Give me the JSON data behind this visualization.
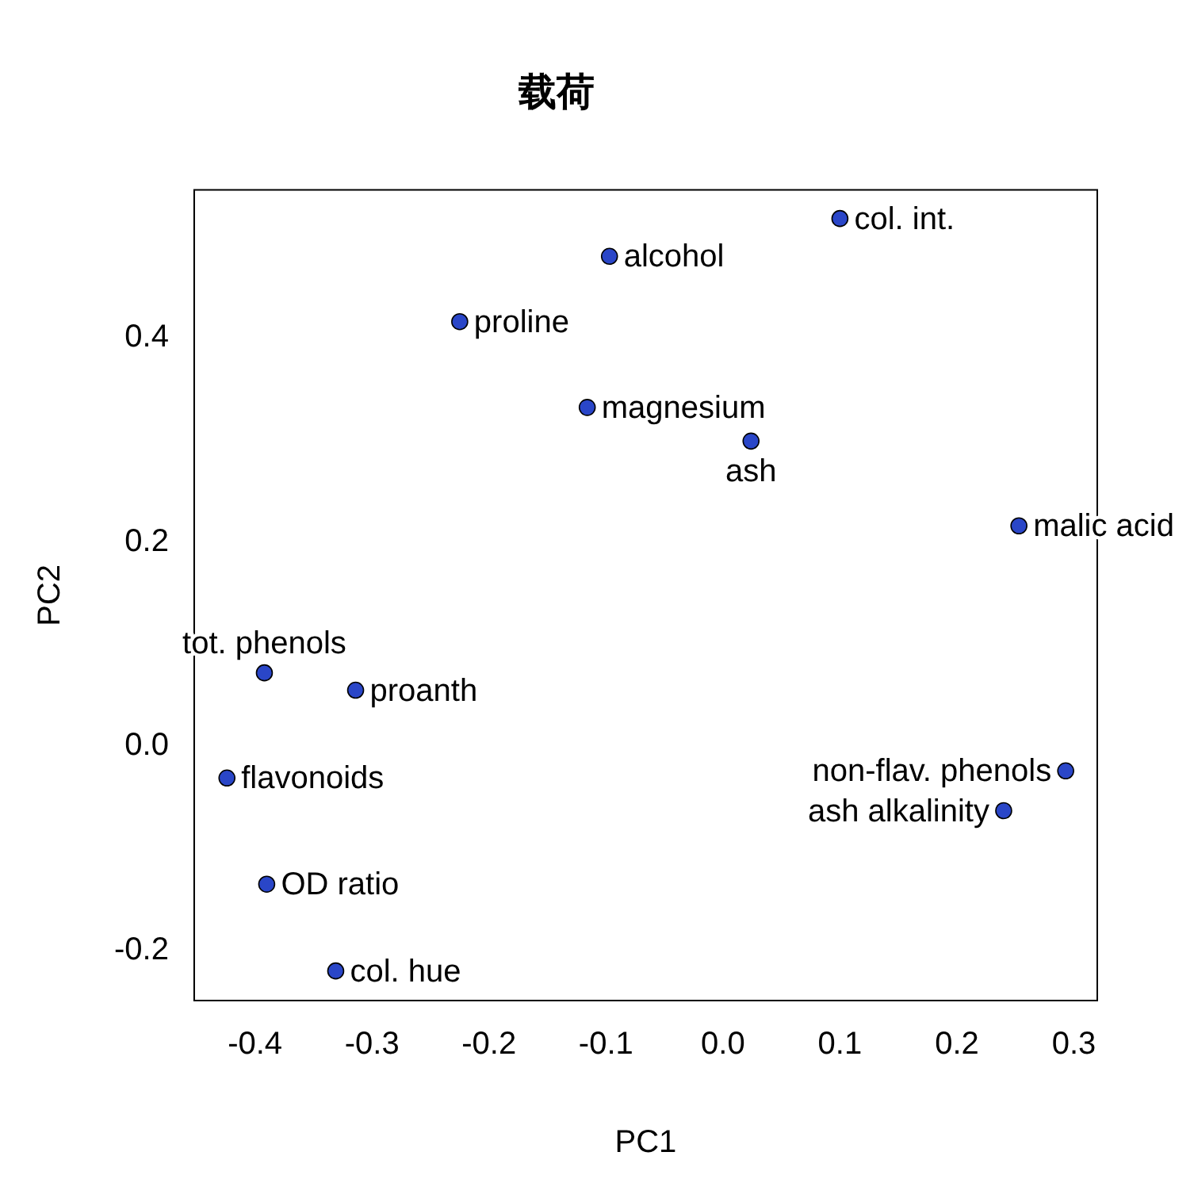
{
  "chart_data": {
    "type": "scatter",
    "title": "载荷",
    "xlabel": "PC1",
    "ylabel": "PC2",
    "x": [
      0.1,
      -0.097,
      -0.225,
      -0.116,
      0.024,
      0.253,
      -0.392,
      -0.314,
      -0.424,
      0.293,
      0.24,
      -0.39,
      -0.331
    ],
    "series": [
      {
        "color": "#2a46c8",
        "values": [
          0.517,
          0.48,
          0.416,
          0.332,
          0.299,
          0.216,
          0.072,
          0.055,
          -0.031,
          -0.024,
          -0.063,
          -0.135,
          -0.22
        ]
      }
    ],
    "marker": "circle",
    "grid": false,
    "legend": false,
    "xlim": [
      -0.452,
      0.32
    ],
    "ylim": [
      -0.249,
      0.545
    ],
    "xticks": [
      -0.4,
      -0.3,
      -0.2,
      -0.1,
      {
        "value": 0,
        "label": "0.0"
      },
      0.1,
      0.2,
      0.3
    ],
    "yticks": [
      -0.2,
      {
        "value": 0,
        "label": "0.0"
      },
      0.2,
      0.4
    ],
    "annotations": [
      {
        "text": "col. int.",
        "x": 0.1,
        "y": 0.517
      },
      {
        "text": "alcohol",
        "x": -0.097,
        "y": 0.48
      },
      {
        "text": "proline",
        "x": -0.225,
        "y": 0.416
      },
      {
        "text": "magnesium",
        "x": -0.116,
        "y": 0.332
      },
      {
        "text": "ash",
        "x": 0.024,
        "y": 0.299
      },
      {
        "text": "malic acid",
        "x": 0.253,
        "y": 0.216
      },
      {
        "text": "tot. phenols",
        "x": -0.392,
        "y": 0.072
      },
      {
        "text": "proanth",
        "x": -0.314,
        "y": 0.055
      },
      {
        "text": "flavonoids",
        "x": -0.424,
        "y": -0.031
      },
      {
        "text": "non-flav. phenols",
        "x": 0.293,
        "y": -0.024
      },
      {
        "text": "ash alkalinity",
        "x": 0.24,
        "y": -0.063
      },
      {
        "text": "OD ratio",
        "x": -0.39,
        "y": -0.135
      },
      {
        "text": "col. hue",
        "x": -0.331,
        "y": -0.22
      }
    ]
  }
}
